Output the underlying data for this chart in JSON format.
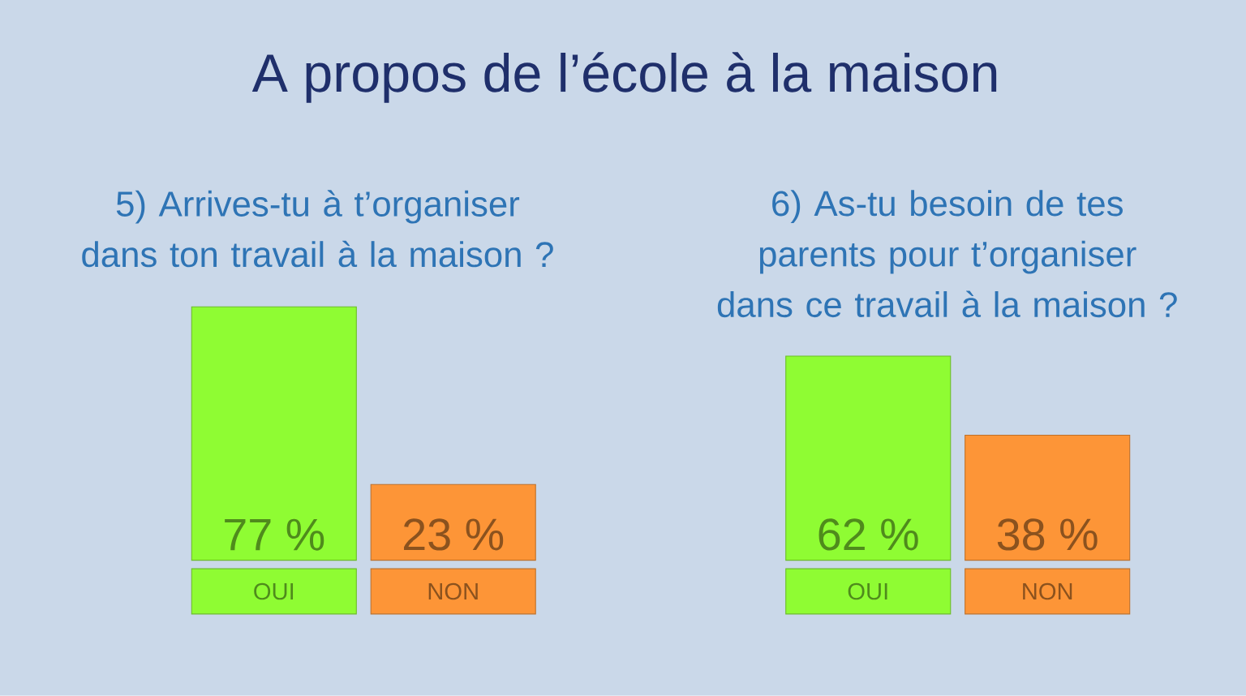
{
  "chart_data": [
    {
      "type": "other",
      "title": "A propos de l’école à la maison"
    },
    {
      "type": "bar",
      "title": "5) Arrives-tu à t’organiser dans ton travail à la maison ?",
      "categories": [
        "OUI",
        "NON"
      ],
      "values": [
        77,
        23
      ],
      "colors": [
        "#8ffc33",
        "#fd9537"
      ],
      "value_labels": [
        "77 %",
        "23 %"
      ]
    },
    {
      "type": "bar",
      "title": "6) As-tu besoin de tes parents pour t’organiser dans ce travail à la maison ?",
      "categories": [
        "OUI",
        "NON"
      ],
      "values": [
        62,
        38
      ],
      "colors": [
        "#8ffc33",
        "#fd9537"
      ],
      "value_labels": [
        "62 %",
        "38 %"
      ]
    }
  ]
}
